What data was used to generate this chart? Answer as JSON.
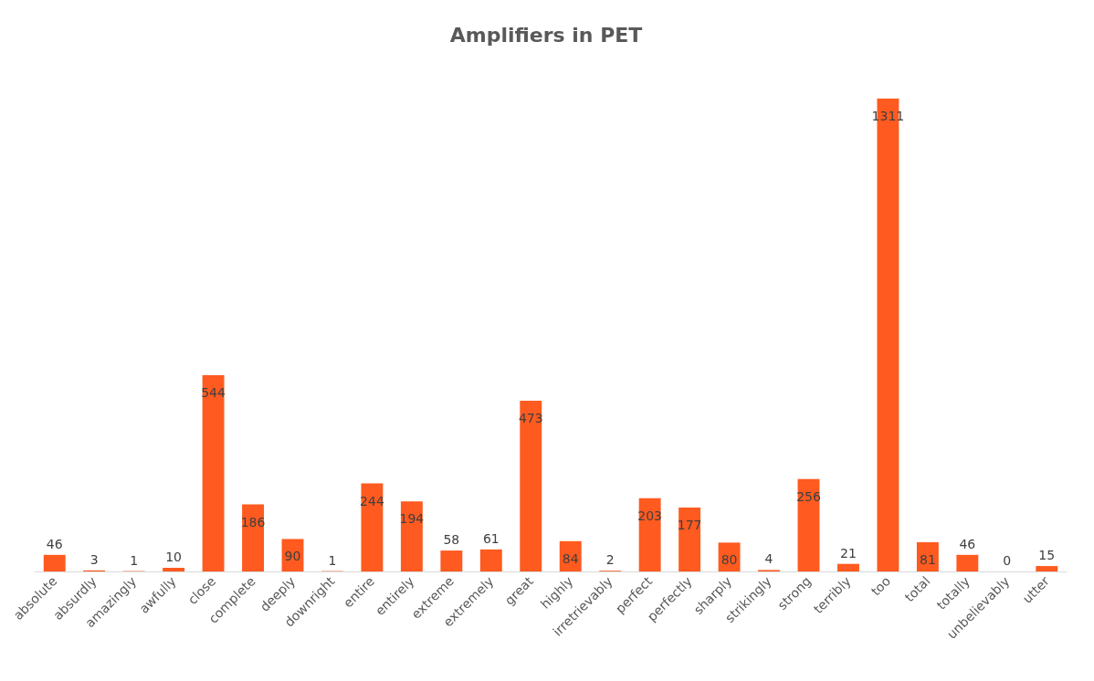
{
  "chart_data": {
    "type": "bar",
    "title": "Amplifiers in PET",
    "categories": [
      "absolute",
      "absurdly",
      "amazingly",
      "awfully",
      "close",
      "complete",
      "deeply",
      "downright",
      "entire",
      "entirely",
      "extreme",
      "extremely",
      "great",
      "highly",
      "irretrievably",
      "perfect",
      "perfectly",
      "sharply",
      "strikingly",
      "strong",
      "terribly",
      "too",
      "total",
      "totally",
      "unbelievably",
      "utter"
    ],
    "values": [
      46,
      3,
      1,
      10,
      544,
      186,
      90,
      1,
      244,
      194,
      58,
      61,
      473,
      84,
      2,
      203,
      177,
      80,
      4,
      256,
      21,
      1311,
      81,
      46,
      0,
      15
    ],
    "color": "#ff5a1f",
    "data_labels": true
  }
}
